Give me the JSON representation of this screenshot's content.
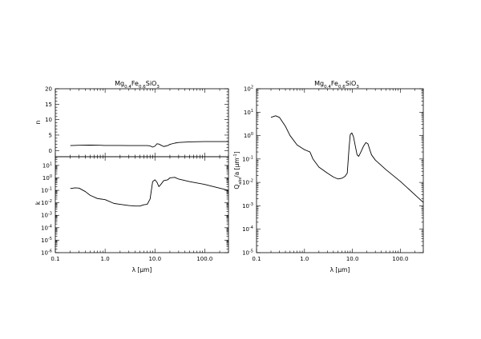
{
  "chart_data": [
    {
      "type": "line",
      "panel": "refractive-index-n",
      "title_parts": [
        "Mg",
        "0.4",
        "Fe",
        "0.6",
        "SiO",
        "3"
      ],
      "xlabel": "λ [μm]",
      "ylabel": "n",
      "x_scale": "log",
      "xlim": [
        0.1,
        300
      ],
      "ylim": [
        -2,
        20
      ],
      "y_scale": "linear",
      "yticks": [
        0,
        5,
        10,
        15,
        20
      ],
      "yticklabels": [
        "0",
        "5",
        "10",
        "15",
        "20"
      ],
      "x_tick_labels_shown": false,
      "series": [
        {
          "x": [
            0.2,
            0.3,
            0.5,
            0.8,
            1.0,
            1.5,
            2.0,
            3.0,
            4.0,
            5.0,
            6.0,
            7.0,
            8.0,
            9.0,
            10.0,
            11.0,
            12.0,
            13.0,
            15.0,
            18.0,
            20.0,
            25.0,
            30.0,
            50.0,
            100.0,
            300.0
          ],
          "y": [
            1.6,
            1.7,
            1.75,
            1.7,
            1.65,
            1.65,
            1.65,
            1.6,
            1.6,
            1.6,
            1.6,
            1.6,
            1.5,
            1.1,
            1.4,
            2.2,
            2.1,
            1.8,
            1.3,
            1.6,
            2.0,
            2.4,
            2.6,
            2.8,
            2.9,
            2.9
          ]
        }
      ]
    },
    {
      "type": "line",
      "panel": "extinction-k",
      "xlabel": "λ [μm]",
      "ylabel": "k",
      "x_scale": "log",
      "y_scale": "log",
      "xlim": [
        0.1,
        300
      ],
      "ylim": [
        1e-06,
        50
      ],
      "xticks": [
        0.1,
        1.0,
        10.0,
        100.0
      ],
      "xticklabels": [
        "0.1",
        "1.0",
        "10.0",
        "100.0"
      ],
      "yticks": [
        1e-06,
        1e-05,
        0.0001,
        0.001,
        0.01,
        0.1,
        1,
        10
      ],
      "yticklabels": [
        {
          "base": "10",
          "exp": "-6"
        },
        {
          "base": "10",
          "exp": "-5"
        },
        {
          "base": "10",
          "exp": "-4"
        },
        {
          "base": "10",
          "exp": "-3"
        },
        {
          "base": "10",
          "exp": "-2"
        },
        {
          "base": "10",
          "exp": "-1"
        },
        {
          "base": "10",
          "exp": "0"
        },
        {
          "base": "10",
          "exp": "1"
        }
      ],
      "series": [
        {
          "x": [
            0.2,
            0.25,
            0.3,
            0.4,
            0.5,
            0.7,
            1.0,
            1.5,
            2.0,
            3.0,
            4.0,
            5.0,
            6.0,
            7.0,
            8.0,
            9.0,
            10.0,
            11.0,
            12.0,
            13.0,
            15.0,
            18.0,
            20.0,
            25.0,
            30.0,
            50.0,
            100.0,
            300.0
          ],
          "y": [
            0.14,
            0.16,
            0.15,
            0.08,
            0.04,
            0.022,
            0.018,
            0.009,
            0.0075,
            0.006,
            0.0055,
            0.0055,
            0.007,
            0.0075,
            0.02,
            0.5,
            0.7,
            0.45,
            0.2,
            0.28,
            0.6,
            0.7,
            1.0,
            1.1,
            0.8,
            0.5,
            0.3,
            0.1
          ]
        }
      ]
    },
    {
      "type": "line",
      "panel": "absorption-efficiency",
      "title_parts": [
        "Mg",
        "0.4",
        "Fe",
        "0.6",
        "SiO",
        "3"
      ],
      "xlabel": "λ [μm]",
      "ylabel_parts": [
        "Q",
        "abs",
        "/a [μm",
        "-1",
        "]"
      ],
      "x_scale": "log",
      "y_scale": "log",
      "xlim": [
        0.1,
        300
      ],
      "ylim": [
        1e-05,
        100
      ],
      "xticks": [
        0.1,
        1.0,
        10.0,
        100.0
      ],
      "xticklabels": [
        "0.1",
        "1.0",
        "10.0",
        "100.0"
      ],
      "yticks": [
        1e-05,
        0.0001,
        0.001,
        0.01,
        0.1,
        1,
        10,
        100
      ],
      "yticklabels": [
        {
          "base": "10",
          "exp": "-5"
        },
        {
          "base": "10",
          "exp": "-4"
        },
        {
          "base": "10",
          "exp": "-3"
        },
        {
          "base": "10",
          "exp": "-2"
        },
        {
          "base": "10",
          "exp": "-1"
        },
        {
          "base": "10",
          "exp": "0"
        },
        {
          "base": "10",
          "exp": "1"
        },
        {
          "base": "10",
          "exp": "2"
        }
      ],
      "series": [
        {
          "x": [
            0.2,
            0.25,
            0.3,
            0.4,
            0.5,
            0.7,
            1.0,
            1.3,
            1.5,
            2.0,
            3.0,
            4.0,
            5.0,
            6.0,
            7.0,
            7.8,
            8.5,
            9.0,
            9.7,
            10.5,
            11.5,
            12.5,
            13.5,
            15.0,
            17.0,
            19.0,
            21.0,
            23.0,
            25.0,
            30.0,
            50.0,
            100.0,
            300.0
          ],
          "y": [
            6.0,
            7.0,
            6.0,
            2.5,
            1.0,
            0.4,
            0.25,
            0.2,
            0.1,
            0.045,
            0.025,
            0.017,
            0.014,
            0.015,
            0.018,
            0.025,
            0.3,
            1.1,
            1.3,
            0.9,
            0.35,
            0.15,
            0.13,
            0.2,
            0.35,
            0.5,
            0.45,
            0.25,
            0.15,
            0.09,
            0.035,
            0.011,
            0.0014
          ]
        }
      ]
    }
  ]
}
